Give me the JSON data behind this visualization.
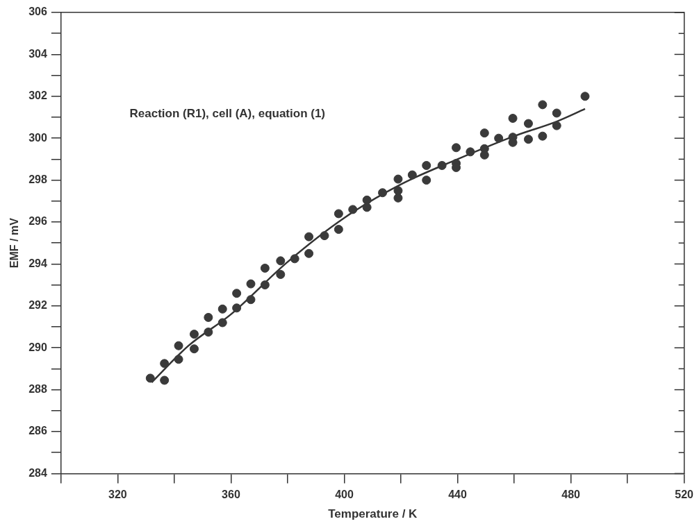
{
  "chart_data": {
    "type": "scatter",
    "xlabel": "Temperature / K",
    "ylabel": "EMF / mV",
    "annotations": [
      "Reaction (R1), cell (A), equation (1)"
    ],
    "xlim": [
      300,
      520
    ],
    "xticks": [
      {
        "value": 300,
        "label": null
      },
      320,
      {
        "value": 340,
        "label": null
      },
      360,
      {
        "value": 380,
        "label": null
      },
      400,
      {
        "value": 420,
        "label": null
      },
      440,
      {
        "value": 460,
        "label": null
      },
      480,
      {
        "value": 500,
        "label": null
      },
      520
    ],
    "ylim": [
      284,
      306
    ],
    "yticks": [
      284,
      {
        "value": 285,
        "label": null
      },
      286,
      {
        "value": 287,
        "label": null
      },
      288,
      {
        "value": 289,
        "label": null
      },
      290,
      {
        "value": 291,
        "label": null
      },
      292,
      {
        "value": 293,
        "label": null
      },
      294,
      {
        "value": 295,
        "label": null
      },
      296,
      {
        "value": 297,
        "label": null
      },
      298,
      {
        "value": 299,
        "label": null
      },
      300,
      {
        "value": 301,
        "label": null
      },
      302,
      {
        "value": 303,
        "label": null
      },
      304,
      {
        "value": 305,
        "label": null
      },
      306
    ],
    "grid": false,
    "legend": false,
    "series": [
      {
        "color": "#3a3a3a",
        "marker": "circle",
        "x": [
          331.5,
          336.5,
          336.5,
          341.5,
          341.5,
          347,
          347,
          352,
          352,
          357,
          357,
          362,
          362,
          367,
          367,
          372,
          372,
          377.5,
          377.5,
          382.5,
          387.5,
          387.5,
          393,
          398,
          398,
          403,
          408,
          408,
          413.5,
          419,
          419,
          419,
          424,
          429,
          429,
          434.5,
          439.5,
          439.5,
          439.5,
          444.5,
          449.5,
          449.5,
          449.5,
          454.5,
          459.5,
          459.5,
          459.5,
          465,
          465,
          470,
          470,
          475,
          475,
          485
        ],
        "values": [
          288.55,
          288.45,
          289.25,
          289.45,
          290.1,
          289.95,
          290.65,
          290.75,
          291.45,
          291.2,
          291.85,
          291.9,
          292.6,
          292.3,
          293.05,
          293,
          293.8,
          293.5,
          294.15,
          294.25,
          295.3,
          294.5,
          295.35,
          296.4,
          295.65,
          296.6,
          297.05,
          296.7,
          297.4,
          298.05,
          297.5,
          297.15,
          298.25,
          298.7,
          298,
          298.7,
          299.55,
          298.8,
          298.6,
          299.35,
          300.25,
          299.5,
          299.2,
          300,
          300.95,
          300.05,
          299.8,
          300.7,
          299.95,
          301.6,
          300.1,
          301.2,
          300.6,
          302
        ]
      },
      {
        "type": "line",
        "color": "#333333",
        "marker": "none",
        "line_style": "solid",
        "x": [
          332,
          345,
          360,
          380,
          400,
          420,
          440,
          460,
          475,
          485
        ],
        "values": [
          288.35,
          290.1,
          291.6,
          294.1,
          296.2,
          297.8,
          299,
          300.1,
          300.8,
          301.4
        ]
      }
    ]
  }
}
